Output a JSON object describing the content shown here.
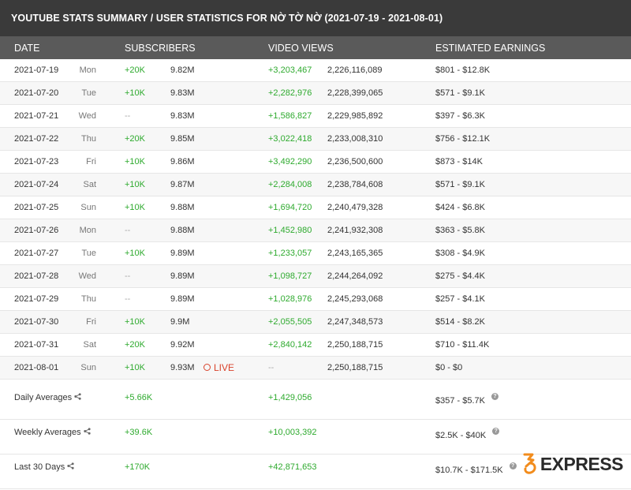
{
  "title": "YOUTUBE STATS SUMMARY / USER STATISTICS FOR NỜ TỜ NỜ (2021-07-19 - 2021-08-01)",
  "columns": {
    "date": "DATE",
    "subscribers": "SUBSCRIBERS",
    "video_views": "VIDEO VIEWS",
    "earnings": "ESTIMATED EARNINGS"
  },
  "rows": [
    {
      "date": "2021-07-19",
      "day": "Mon",
      "sub_change": "+20K",
      "subs": "9.82M",
      "view_change": "+3,203,467",
      "views": "2,226,116,089",
      "earnings": "$801  -  $12.8K"
    },
    {
      "date": "2021-07-20",
      "day": "Tue",
      "sub_change": "+10K",
      "subs": "9.83M",
      "view_change": "+2,282,976",
      "views": "2,228,399,065",
      "earnings": "$571  -  $9.1K"
    },
    {
      "date": "2021-07-21",
      "day": "Wed",
      "sub_change": "--",
      "subs": "9.83M",
      "view_change": "+1,586,827",
      "views": "2,229,985,892",
      "earnings": "$397  -  $6.3K"
    },
    {
      "date": "2021-07-22",
      "day": "Thu",
      "sub_change": "+20K",
      "subs": "9.85M",
      "view_change": "+3,022,418",
      "views": "2,233,008,310",
      "earnings": "$756  -  $12.1K"
    },
    {
      "date": "2021-07-23",
      "day": "Fri",
      "sub_change": "+10K",
      "subs": "9.86M",
      "view_change": "+3,492,290",
      "views": "2,236,500,600",
      "earnings": "$873  -  $14K"
    },
    {
      "date": "2021-07-24",
      "day": "Sat",
      "sub_change": "+10K",
      "subs": "9.87M",
      "view_change": "+2,284,008",
      "views": "2,238,784,608",
      "earnings": "$571  -  $9.1K"
    },
    {
      "date": "2021-07-25",
      "day": "Sun",
      "sub_change": "+10K",
      "subs": "9.88M",
      "view_change": "+1,694,720",
      "views": "2,240,479,328",
      "earnings": "$424  -  $6.8K"
    },
    {
      "date": "2021-07-26",
      "day": "Mon",
      "sub_change": "--",
      "subs": "9.88M",
      "view_change": "+1,452,980",
      "views": "2,241,932,308",
      "earnings": "$363  -  $5.8K"
    },
    {
      "date": "2021-07-27",
      "day": "Tue",
      "sub_change": "+10K",
      "subs": "9.89M",
      "view_change": "+1,233,057",
      "views": "2,243,165,365",
      "earnings": "$308  -  $4.9K"
    },
    {
      "date": "2021-07-28",
      "day": "Wed",
      "sub_change": "--",
      "subs": "9.89M",
      "view_change": "+1,098,727",
      "views": "2,244,264,092",
      "earnings": "$275  -  $4.4K"
    },
    {
      "date": "2021-07-29",
      "day": "Thu",
      "sub_change": "--",
      "subs": "9.89M",
      "view_change": "+1,028,976",
      "views": "2,245,293,068",
      "earnings": "$257  -  $4.1K"
    },
    {
      "date": "2021-07-30",
      "day": "Fri",
      "sub_change": "+10K",
      "subs": "9.9M",
      "view_change": "+2,055,505",
      "views": "2,247,348,573",
      "earnings": "$514  -  $8.2K"
    },
    {
      "date": "2021-07-31",
      "day": "Sat",
      "sub_change": "+20K",
      "subs": "9.92M",
      "view_change": "+2,840,142",
      "views": "2,250,188,715",
      "earnings": "$710  -  $11.4K"
    },
    {
      "date": "2021-08-01",
      "day": "Sun",
      "sub_change": "+10K",
      "subs": "9.93M",
      "live": "LIVE",
      "view_change": "--",
      "views": "2,250,188,715",
      "earnings": "$0  -  $0"
    }
  ],
  "summary": [
    {
      "label": "Daily Averages",
      "sub": "+5.66K",
      "view": "+1,429,056",
      "earn": "$357  -  $5.7K"
    },
    {
      "label": "Weekly Averages",
      "sub": "+39.6K",
      "view": "+10,003,392",
      "earn": "$2.5K  -  $40K"
    },
    {
      "label": "Last 30 Days",
      "sub": "+170K",
      "view": "+42,871,653",
      "earn": "$10.7K  -  $171.5K"
    }
  ],
  "icons": {
    "share": "share-icon",
    "help": "help-icon",
    "live": "live-clock-icon"
  },
  "watermark": {
    "text": "EXPRESS"
  },
  "colors": {
    "positive": "#2eaa2e",
    "live": "#d9422b",
    "header_dark": "#3a3a3a",
    "header_mid": "#5a5a5a",
    "logo_orange": "#f28c1c"
  }
}
